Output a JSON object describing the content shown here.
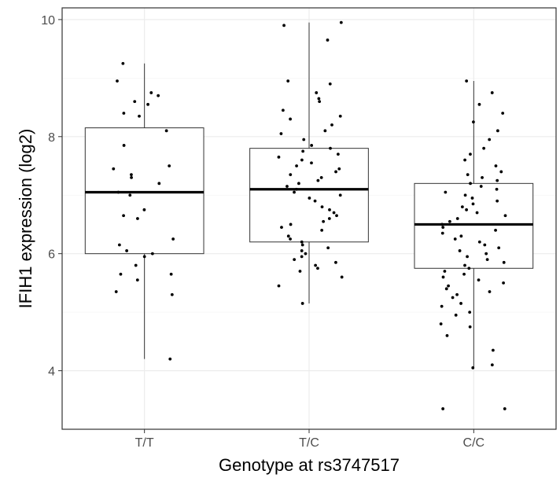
{
  "chart_data": {
    "type": "box",
    "xlabel": "Genotype at rs3747517",
    "ylabel": "IFIH1 expression (log2)",
    "categories": [
      "T/T",
      "T/C",
      "C/C"
    ],
    "ylim": [
      3.0,
      10.2
    ],
    "yticks": [
      4,
      6,
      8,
      10
    ],
    "grid": true,
    "boxes": [
      {
        "category": "T/T",
        "whisker_low": 4.2,
        "q1": 6.0,
        "median": 7.05,
        "q3": 8.15,
        "whisker_high": 9.25
      },
      {
        "category": "T/C",
        "whisker_low": 5.15,
        "q1": 6.2,
        "median": 7.1,
        "q3": 7.8,
        "whisker_high": 9.95
      },
      {
        "category": "C/C",
        "whisker_low": 4.05,
        "q1": 5.75,
        "median": 6.5,
        "q3": 7.2,
        "whisker_high": 8.95
      }
    ],
    "points": [
      {
        "category": "T/T",
        "values": [
          4.2,
          5.3,
          5.35,
          5.55,
          5.65,
          5.65,
          5.8,
          5.95,
          6.0,
          6.05,
          6.15,
          6.25,
          6.6,
          6.65,
          6.75,
          7.0,
          7.05,
          7.2,
          7.3,
          7.35,
          7.45,
          7.5,
          7.85,
          8.1,
          8.35,
          8.4,
          8.55,
          8.6,
          8.7,
          8.75,
          8.95,
          9.25
        ]
      },
      {
        "category": "T/C",
        "values": [
          5.15,
          5.45,
          5.6,
          5.7,
          5.75,
          5.8,
          5.85,
          5.9,
          5.95,
          6.0,
          6.05,
          6.1,
          6.15,
          6.2,
          6.25,
          6.3,
          6.4,
          6.45,
          6.5,
          6.55,
          6.6,
          6.65,
          6.7,
          6.75,
          6.8,
          6.9,
          6.95,
          7.0,
          7.05,
          7.1,
          7.15,
          7.2,
          7.25,
          7.3,
          7.35,
          7.4,
          7.45,
          7.5,
          7.55,
          7.6,
          7.65,
          7.7,
          7.75,
          7.8,
          7.85,
          7.95,
          8.05,
          8.1,
          8.2,
          8.3,
          8.35,
          8.45,
          8.6,
          8.65,
          8.75,
          8.9,
          8.95,
          9.65,
          9.9,
          9.95
        ]
      },
      {
        "category": "C/C",
        "values": [
          3.35,
          3.35,
          4.05,
          4.1,
          4.35,
          4.6,
          4.75,
          4.8,
          4.95,
          5.0,
          5.1,
          5.15,
          5.25,
          5.3,
          5.35,
          5.4,
          5.45,
          5.5,
          5.55,
          5.6,
          5.65,
          5.7,
          5.75,
          5.8,
          5.85,
          5.9,
          5.95,
          6.0,
          6.05,
          6.1,
          6.15,
          6.2,
          6.25,
          6.3,
          6.35,
          6.4,
          6.45,
          6.5,
          6.55,
          6.6,
          6.65,
          6.7,
          6.75,
          6.8,
          6.85,
          6.9,
          6.95,
          7.0,
          7.05,
          7.1,
          7.15,
          7.2,
          7.25,
          7.3,
          7.35,
          7.4,
          7.5,
          7.6,
          7.7,
          7.8,
          7.95,
          8.1,
          8.25,
          8.4,
          8.55,
          8.75,
          8.95
        ]
      }
    ]
  }
}
